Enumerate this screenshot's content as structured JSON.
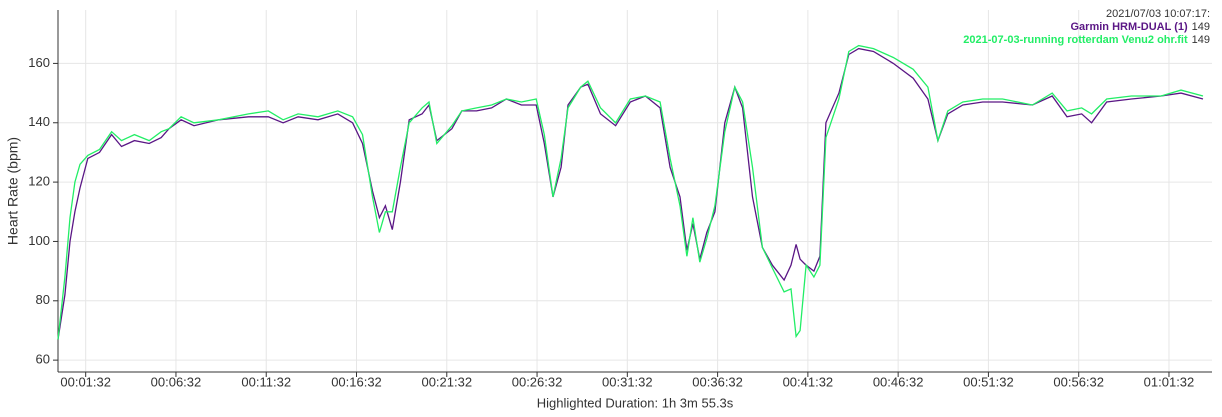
{
  "chart_data": {
    "type": "line",
    "ylabel": "Heart Rate (bpm)",
    "xlabel": "Highlighted Duration: 1h 3m 55.3s",
    "tooltip": {
      "time": "2021/07/03 10:07:17:",
      "values": [
        149,
        149
      ]
    },
    "xlim": [
      0,
      3835
    ],
    "ylim": [
      56,
      178
    ],
    "yticks": [
      60,
      80,
      100,
      120,
      140,
      160
    ],
    "xticks": [
      {
        "value": 92,
        "label": "00:01:32"
      },
      {
        "value": 392,
        "label": "00:06:32"
      },
      {
        "value": 692,
        "label": "00:11:32"
      },
      {
        "value": 992,
        "label": "00:16:32"
      },
      {
        "value": 1292,
        "label": "00:21:32"
      },
      {
        "value": 1592,
        "label": "00:26:32"
      },
      {
        "value": 1892,
        "label": "00:31:32"
      },
      {
        "value": 2192,
        "label": "00:36:32"
      },
      {
        "value": 2492,
        "label": "00:41:32"
      },
      {
        "value": 2792,
        "label": "00:46:32"
      },
      {
        "value": 3092,
        "label": "00:51:32"
      },
      {
        "value": 3392,
        "label": "00:56:32"
      },
      {
        "value": 3692,
        "label": "01:01:32"
      }
    ],
    "grid": true,
    "x": [
      0,
      23,
      40,
      56,
      73,
      99,
      138,
      178,
      211,
      254,
      303,
      343,
      369,
      409,
      452,
      534,
      633,
      699,
      748,
      798,
      864,
      930,
      979,
      1012,
      1045,
      1068,
      1088,
      1111,
      1138,
      1167,
      1210,
      1233,
      1259,
      1309,
      1342,
      1391,
      1441,
      1490,
      1540,
      1589,
      1616,
      1645,
      1672,
      1695,
      1737,
      1761,
      1803,
      1853,
      1902,
      1952,
      2001,
      2034,
      2067,
      2090,
      2110,
      2133,
      2156,
      2183,
      2216,
      2249,
      2275,
      2308,
      2341,
      2374,
      2413,
      2436,
      2453,
      2466,
      2486,
      2512,
      2532,
      2552,
      2595,
      2628,
      2661,
      2710,
      2776,
      2842,
      2891,
      2924,
      2957,
      3007,
      3073,
      3139,
      3238,
      3304,
      3353,
      3402,
      3435,
      3485,
      3567,
      3666,
      3732,
      3805
    ],
    "series": [
      {
        "name": "Garmin HRM-DUAL (1)",
        "color": "#5a1685",
        "values": [
          67,
          82,
          100,
          110,
          118,
          128,
          130,
          136,
          132,
          134,
          133,
          135,
          138,
          141,
          139,
          141,
          142,
          142,
          140,
          142,
          141,
          143,
          140,
          133,
          117,
          108,
          112,
          104,
          120,
          141,
          143,
          146,
          134,
          138,
          144,
          144,
          145,
          148,
          146,
          146,
          133,
          115,
          125,
          146,
          152,
          153,
          143,
          139,
          147,
          149,
          145,
          125,
          115,
          97,
          106,
          94,
          103,
          110,
          140,
          152,
          145,
          115,
          98,
          92,
          87,
          92,
          99,
          94,
          92,
          90,
          95,
          140,
          150,
          163,
          165,
          164,
          160,
          155,
          148,
          134,
          143,
          146,
          147,
          147,
          146,
          149,
          142,
          143,
          140,
          147,
          148,
          149,
          150,
          148
        ]
      },
      {
        "name": "2021-07-03-running rotterdam Venu2 ohr.fit",
        "color": "#22ee66",
        "values": [
          67,
          88,
          108,
          120,
          126,
          129,
          131,
          137,
          134,
          136,
          134,
          137,
          138,
          142,
          140,
          141,
          143,
          144,
          141,
          143,
          142,
          144,
          142,
          136,
          115,
          103,
          110,
          110,
          125,
          140,
          145,
          147,
          133,
          139,
          144,
          145,
          146,
          148,
          147,
          148,
          136,
          115,
          128,
          145,
          152,
          154,
          145,
          140,
          148,
          149,
          147,
          128,
          112,
          95,
          108,
          93,
          101,
          112,
          137,
          152,
          147,
          125,
          98,
          91,
          83,
          84,
          68,
          70,
          92,
          88,
          92,
          135,
          148,
          164,
          166,
          165,
          162,
          158,
          152,
          134,
          144,
          147,
          148,
          148,
          146,
          150,
          144,
          145,
          143,
          148,
          149,
          149,
          151,
          149
        ]
      }
    ]
  }
}
